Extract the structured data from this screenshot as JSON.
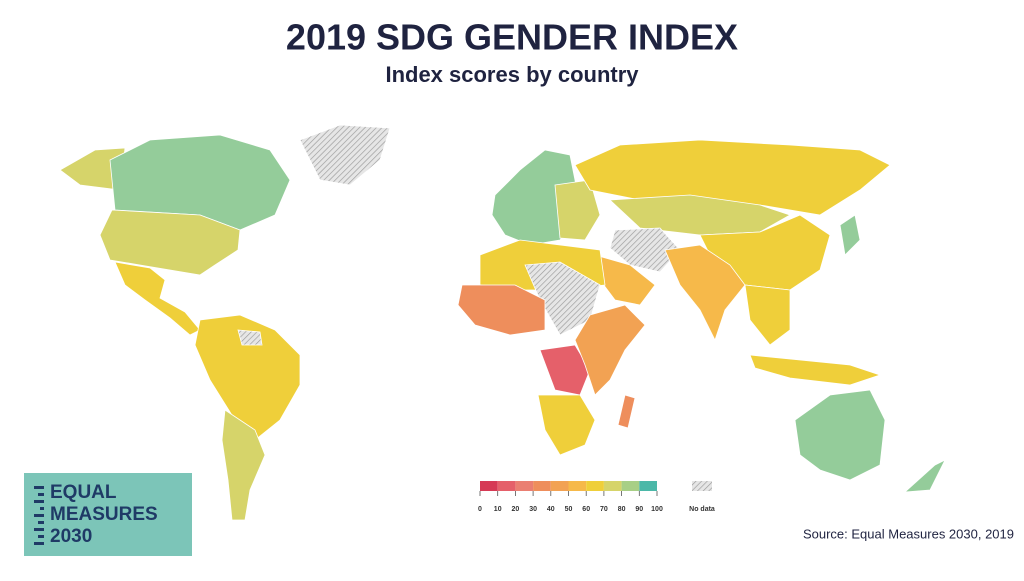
{
  "header": {
    "title": "2019 SDG GENDER INDEX",
    "subtitle": "Index scores by country"
  },
  "legend": {
    "ticks": [
      0,
      10,
      20,
      30,
      40,
      50,
      60,
      70,
      80,
      90,
      100
    ],
    "colors": [
      "#d63a55",
      "#e5606a",
      "#ea7f72",
      "#ee8e5c",
      "#f2a253",
      "#f6b94a",
      "#efcf3a",
      "#d6d46a",
      "#a8cf86",
      "#4bb8a8"
    ],
    "no_data": "No data"
  },
  "logo": {
    "lines": [
      "EQUAL",
      "MEASURES",
      "2030"
    ]
  },
  "source": "Source: Equal Measures 2030, 2019"
}
